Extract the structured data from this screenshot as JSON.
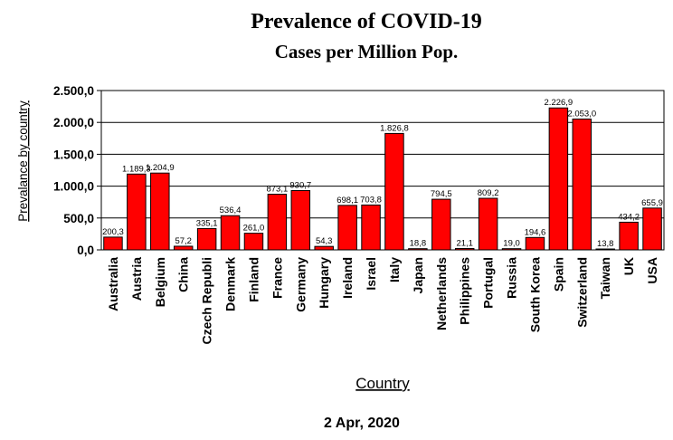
{
  "chart_data": {
    "type": "bar",
    "title": "Prevalence of COVID-19",
    "subtitle": "Cases per Million Pop.",
    "ylabel": "Prevalance by country",
    "xlabel": "Country",
    "footer": "2 Apr, 2020",
    "ylim": [
      0,
      2500
    ],
    "yticks": [
      "0,0",
      "500,0",
      "1.000,0",
      "1.500,0",
      "2.000,0",
      "2.500,0"
    ],
    "ytick_values": [
      0,
      500,
      1000,
      1500,
      2000,
      2500
    ],
    "grid": true,
    "bar_color": "#ff0000",
    "categories": [
      "Australia",
      "Austria",
      "Belgium",
      "China",
      "Czech Republi",
      "Denmark",
      "Finland",
      "France",
      "Germany",
      "Hungary",
      "Ireland",
      "Israel",
      "Italy",
      "Japan",
      "Netherlands",
      "Philippines",
      "Portugal",
      "Russia",
      "South Korea",
      "Spain",
      "Switzerland",
      "Taiwan",
      "UK",
      "USA"
    ],
    "values": [
      200.3,
      1189.3,
      1204.9,
      57.2,
      335.1,
      536.4,
      261.0,
      873.1,
      930.7,
      54.3,
      698.1,
      703.8,
      1826.8,
      18.8,
      794.5,
      21.1,
      809.2,
      19.0,
      194.6,
      2226.9,
      2053.0,
      13.8,
      434.2,
      655.9
    ],
    "labels": [
      "200,3",
      "1.189,3",
      "1.204,9",
      "57,2",
      "335,1",
      "536,4",
      "261,0",
      "873,1",
      "930,7",
      "54,3",
      "698,1",
      "703,8",
      "1.826,8",
      "18,8",
      "794,5",
      "21,1",
      "809,2",
      "19,0",
      "194,6",
      "2.226,9",
      "2.053,0",
      "13,8",
      "434,2",
      "655,9"
    ]
  }
}
